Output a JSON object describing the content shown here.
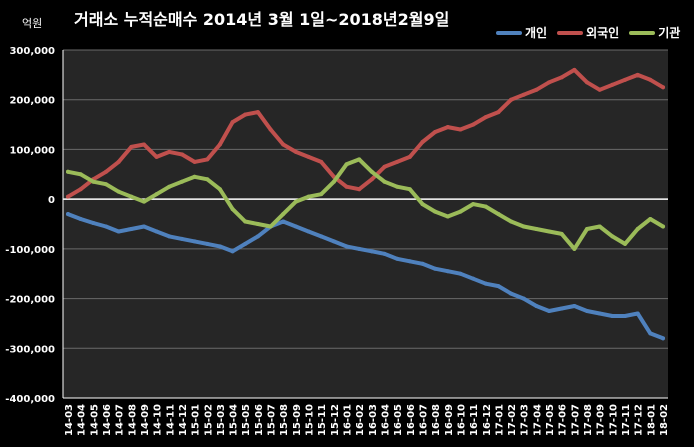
{
  "chart_data": {
    "type": "line",
    "title": "거래소 누적순매수 2014년 3월 1일~2018년2월9일",
    "unit_label": "억원",
    "ylim": [
      -400000,
      300000
    ],
    "y_ticks": [
      "300,000",
      "200,000",
      "100,000",
      "0",
      "-100,000",
      "-200,000",
      "-300,000",
      "-400,000"
    ],
    "y_tick_values": [
      300000,
      200000,
      100000,
      0,
      -100000,
      -200000,
      -300000,
      -400000
    ],
    "grid": true,
    "legend_position": "top-right",
    "categories": [
      "14-03",
      "14-04",
      "14-05",
      "14-06",
      "14-07",
      "14-08",
      "14-09",
      "14-10",
      "14-11",
      "14-12",
      "15-01",
      "15-02",
      "15-03",
      "15-04",
      "15-05",
      "15-06",
      "15-07",
      "15-08",
      "15-09",
      "15-10",
      "15-11",
      "15-12",
      "16-01",
      "16-02",
      "16-03",
      "16-04",
      "16-05",
      "16-06",
      "16-07",
      "16-08",
      "16-09",
      "16-10",
      "16-11",
      "16-12",
      "17-01",
      "17-02",
      "17-03",
      "17-04",
      "17-05",
      "17-06",
      "17-07",
      "17-08",
      "17-09",
      "17-10",
      "17-11",
      "17-12",
      "18-01",
      "18-02"
    ],
    "series": [
      {
        "name": "개인",
        "color": "#4F81BD",
        "values": [
          -30000,
          -40000,
          -48000,
          -55000,
          -65000,
          -60000,
          -55000,
          -65000,
          -75000,
          -80000,
          -85000,
          -90000,
          -95000,
          -105000,
          -90000,
          -75000,
          -55000,
          -45000,
          -55000,
          -65000,
          -75000,
          -85000,
          -95000,
          -100000,
          -105000,
          -110000,
          -120000,
          -125000,
          -130000,
          -140000,
          -145000,
          -150000,
          -160000,
          -170000,
          -175000,
          -190000,
          -200000,
          -215000,
          -225000,
          -220000,
          -215000,
          -225000,
          -230000,
          -235000,
          -235000,
          -230000,
          -270000,
          -280000
        ]
      },
      {
        "name": "외국인",
        "color": "#C0504D",
        "values": [
          5000,
          20000,
          40000,
          55000,
          75000,
          105000,
          110000,
          85000,
          95000,
          90000,
          75000,
          80000,
          110000,
          155000,
          170000,
          175000,
          140000,
          110000,
          95000,
          85000,
          75000,
          45000,
          25000,
          20000,
          40000,
          65000,
          75000,
          85000,
          115000,
          135000,
          145000,
          140000,
          150000,
          165000,
          175000,
          200000,
          210000,
          220000,
          235000,
          245000,
          260000,
          235000,
          220000,
          230000,
          240000,
          250000,
          240000,
          225000
        ]
      },
      {
        "name": "기관",
        "color": "#9BBB59",
        "values": [
          55000,
          50000,
          35000,
          30000,
          15000,
          5000,
          -5000,
          10000,
          25000,
          35000,
          45000,
          40000,
          20000,
          -20000,
          -45000,
          -50000,
          -55000,
          -30000,
          -5000,
          5000,
          10000,
          35000,
          70000,
          80000,
          55000,
          35000,
          25000,
          20000,
          -10000,
          -25000,
          -35000,
          -25000,
          -10000,
          -15000,
          -30000,
          -45000,
          -55000,
          -60000,
          -65000,
          -70000,
          -100000,
          -60000,
          -55000,
          -75000,
          -90000,
          -60000,
          -40000,
          -55000
        ]
      }
    ]
  }
}
